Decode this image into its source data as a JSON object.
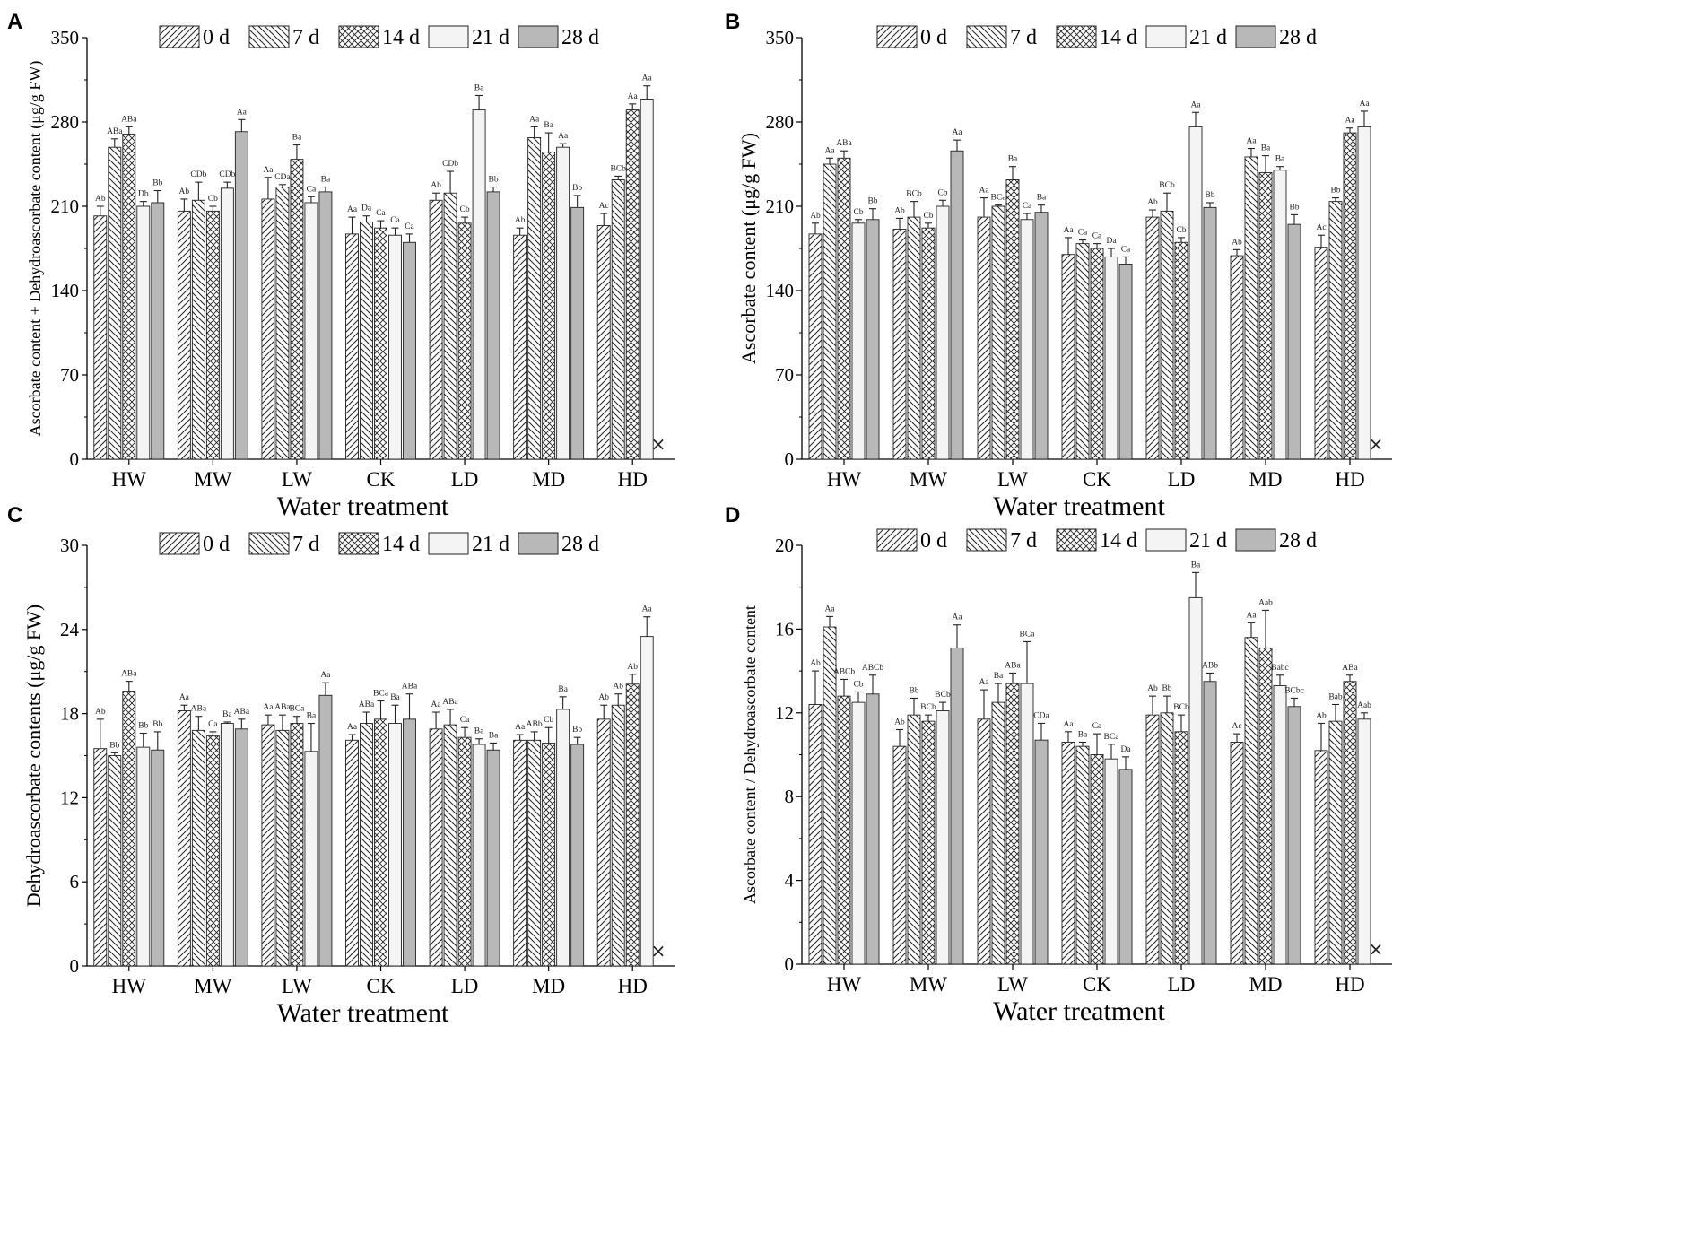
{
  "figure": {
    "legend": [
      "0 d",
      "7 d",
      "14 d",
      "21 d",
      "28 d"
    ],
    "close_mark": "×"
  },
  "chart_data": [
    {
      "panel": "A",
      "type": "bar",
      "xlabel": "Water treatment",
      "ylabel": "Ascorbate content + Dehydroascorbate content (μg/g FW)",
      "ylim": [
        0,
        350
      ],
      "yticks": [
        0,
        70,
        140,
        210,
        280,
        350
      ],
      "categories": [
        "HW",
        "MW",
        "LW",
        "CK",
        "LD",
        "MD",
        "HD"
      ],
      "series": [
        {
          "name": "0 d",
          "values": [
            202,
            206,
            216,
            187,
            215,
            186,
            194
          ],
          "errors": [
            8,
            10,
            18,
            14,
            6,
            6,
            10
          ],
          "labels": [
            "Ab",
            "Ab",
            "Aa",
            "Aa",
            "Ab",
            "Ab",
            "Ac"
          ]
        },
        {
          "name": "7 d",
          "values": [
            259,
            215,
            226,
            197,
            221,
            267,
            232
          ],
          "errors": [
            7,
            15,
            2,
            5,
            18,
            9,
            3
          ],
          "labels": [
            "ABa",
            "CDb",
            "CDa",
            "Da",
            "CDb",
            "Aa",
            "BCb"
          ]
        },
        {
          "name": "14 d",
          "values": [
            270,
            206,
            249,
            192,
            196,
            255,
            290
          ],
          "errors": [
            6,
            4,
            12,
            6,
            5,
            16,
            5
          ],
          "labels": [
            "ABa",
            "Cb",
            "Ba",
            "Ca",
            "Cb",
            "Ba",
            "Aa"
          ]
        },
        {
          "name": "21 d",
          "values": [
            210,
            225,
            213,
            186,
            290,
            259,
            299
          ],
          "errors": [
            4,
            5,
            5,
            6,
            12,
            3,
            11
          ],
          "labels": [
            "Db",
            "CDb",
            "Ca",
            "Ca",
            "Ba",
            "Aa",
            "Aa"
          ]
        },
        {
          "name": "28 d",
          "values": [
            213,
            272,
            222,
            180,
            222,
            209,
            null
          ],
          "errors": [
            10,
            10,
            4,
            7,
            4,
            10,
            null
          ],
          "labels": [
            "Bb",
            "Aa",
            "Ba",
            "Ca",
            "Bb",
            "Bb",
            null
          ]
        }
      ]
    },
    {
      "panel": "B",
      "type": "bar",
      "xlabel": "Water treatment",
      "ylabel": "Ascorbate content (μg/g FW)",
      "ylim": [
        0,
        350
      ],
      "yticks": [
        0,
        70,
        140,
        210,
        280,
        350
      ],
      "categories": [
        "HW",
        "MW",
        "LW",
        "CK",
        "LD",
        "MD",
        "HD"
      ],
      "series": [
        {
          "name": "0 d",
          "values": [
            187,
            191,
            201,
            170,
            201,
            169,
            176
          ],
          "errors": [
            9,
            9,
            16,
            14,
            6,
            5,
            10
          ],
          "labels": [
            "Ab",
            "Ab",
            "Aa",
            "Aa",
            "Ab",
            "Ab",
            "Ac"
          ]
        },
        {
          "name": "7 d",
          "values": [
            245,
            201,
            210,
            179,
            206,
            251,
            214
          ],
          "errors": [
            5,
            13,
            1,
            3,
            15,
            7,
            3
          ],
          "labels": [
            "Aa",
            "BCb",
            "BCa",
            "Ca",
            "BCb",
            "Aa",
            "Bb"
          ]
        },
        {
          "name": "14 d",
          "values": [
            250,
            192,
            232,
            175,
            180,
            238,
            271
          ],
          "errors": [
            6,
            4,
            11,
            4,
            4,
            14,
            4
          ],
          "labels": [
            "ABa",
            "Cb",
            "Ba",
            "Ca",
            "Cb",
            "Ba",
            "Aa"
          ]
        },
        {
          "name": "21 d",
          "values": [
            196,
            210,
            199,
            168,
            276,
            240,
            276
          ],
          "errors": [
            3,
            5,
            5,
            7,
            12,
            3,
            13
          ],
          "labels": [
            "Cb",
            "Cb",
            "Ca",
            "Da",
            "Aa",
            "Ba",
            "Aa"
          ]
        },
        {
          "name": "28 d",
          "values": [
            199,
            256,
            205,
            162,
            209,
            195,
            null
          ],
          "errors": [
            9,
            9,
            6,
            6,
            4,
            8,
            null
          ],
          "labels": [
            "Bb",
            "Aa",
            "Ba",
            "Ca",
            "Bb",
            "Bb",
            null
          ]
        }
      ]
    },
    {
      "panel": "C",
      "type": "bar",
      "xlabel": "Water treatment",
      "ylabel": "Dehydroascorbate contents (μg/g FW)",
      "ylim": [
        0,
        30
      ],
      "yticks": [
        0,
        6,
        12,
        18,
        24,
        30
      ],
      "categories": [
        "HW",
        "MW",
        "LW",
        "CK",
        "LD",
        "MD",
        "HD"
      ],
      "series": [
        {
          "name": "0 d",
          "values": [
            15.5,
            18.2,
            17.2,
            16.1,
            16.9,
            16.1,
            17.6
          ],
          "errors": [
            2.1,
            0.4,
            0.7,
            0.4,
            1.2,
            0.4,
            1.0
          ],
          "labels": [
            "Ab",
            "Aa",
            "Aa",
            "Aa",
            "Aa",
            "Aa",
            "Ab"
          ]
        },
        {
          "name": "7 d",
          "values": [
            15.0,
            16.8,
            16.8,
            17.3,
            17.2,
            16.1,
            18.6
          ],
          "errors": [
            0.2,
            1.0,
            1.1,
            0.8,
            1.1,
            0.6,
            0.8
          ],
          "labels": [
            "Bb",
            "ABa",
            "ABa",
            "ABa",
            "ABa",
            "ABb",
            "Ab"
          ]
        },
        {
          "name": "14 d",
          "values": [
            19.6,
            16.4,
            17.3,
            17.6,
            16.3,
            15.9,
            20.1
          ],
          "errors": [
            0.7,
            0.3,
            0.5,
            1.3,
            0.7,
            1.1,
            0.7
          ],
          "labels": [
            "ABa",
            "Ca",
            "BCa",
            "BCa",
            "Ca",
            "Cb",
            "Ab"
          ]
        },
        {
          "name": "21 d",
          "values": [
            15.6,
            17.3,
            15.3,
            17.3,
            15.8,
            18.3,
            23.5
          ],
          "errors": [
            1.0,
            0.1,
            2.0,
            1.3,
            0.4,
            0.9,
            1.4
          ],
          "labels": [
            "Bb",
            "Ba",
            "Ba",
            "Ba",
            "Ba",
            "Ba",
            "Aa"
          ]
        },
        {
          "name": "28 d",
          "values": [
            15.4,
            16.9,
            19.3,
            17.6,
            15.4,
            15.8,
            null
          ],
          "errors": [
            1.3,
            0.7,
            0.9,
            1.8,
            0.5,
            0.5,
            null
          ],
          "labels": [
            "Bb",
            "ABa",
            "Aa",
            "ABa",
            "Ba",
            "Bb",
            null
          ]
        }
      ]
    },
    {
      "panel": "D",
      "type": "bar",
      "xlabel": "Water treatment",
      "ylabel": "Ascorbate content / Dehydroascorbate content",
      "ylim": [
        0,
        20
      ],
      "yticks": [
        0,
        4,
        8,
        12,
        16,
        20
      ],
      "categories": [
        "HW",
        "MW",
        "LW",
        "CK",
        "LD",
        "MD",
        "HD"
      ],
      "series": [
        {
          "name": "0 d",
          "values": [
            12.4,
            10.4,
            11.7,
            10.6,
            11.9,
            10.6,
            10.2
          ],
          "errors": [
            1.6,
            0.8,
            1.4,
            0.5,
            0.9,
            0.4,
            1.3
          ],
          "labels": [
            "Ab",
            "Ab",
            "Aa",
            "Aa",
            "Ab",
            "Ac",
            "Ab"
          ]
        },
        {
          "name": "7 d",
          "values": [
            16.1,
            11.9,
            12.5,
            10.4,
            12.0,
            15.6,
            11.6
          ],
          "errors": [
            0.5,
            0.8,
            0.9,
            0.2,
            0.8,
            0.7,
            0.8
          ],
          "labels": [
            "Aa",
            "Bb",
            "Ba",
            "Ba",
            "Bb",
            "Aa",
            "Bab"
          ]
        },
        {
          "name": "14 d",
          "values": [
            12.8,
            11.6,
            13.4,
            10.0,
            11.1,
            15.1,
            13.5
          ],
          "errors": [
            0.8,
            0.3,
            0.5,
            1.0,
            0.8,
            1.8,
            0.3
          ],
          "labels": [
            "ABCb",
            "BCb",
            "ABa",
            "Ca",
            "BCb",
            "Aab",
            "ABa"
          ]
        },
        {
          "name": "21 d",
          "values": [
            12.5,
            12.1,
            13.4,
            9.8,
            17.5,
            13.3,
            11.7
          ],
          "errors": [
            0.5,
            0.4,
            2.0,
            0.7,
            1.2,
            0.5,
            0.3
          ],
          "labels": [
            "Cb",
            "BCb",
            "BCa",
            "BCa",
            "Ba",
            "Babc",
            "Aab"
          ]
        },
        {
          "name": "28 d",
          "values": [
            12.9,
            15.1,
            10.7,
            9.3,
            13.5,
            12.3,
            null
          ],
          "errors": [
            0.9,
            1.1,
            0.8,
            0.6,
            0.4,
            0.4,
            null
          ],
          "labels": [
            "ABCb",
            "Aa",
            "CDa",
            "Da",
            "ABb",
            "BCbc",
            null
          ]
        }
      ]
    }
  ]
}
